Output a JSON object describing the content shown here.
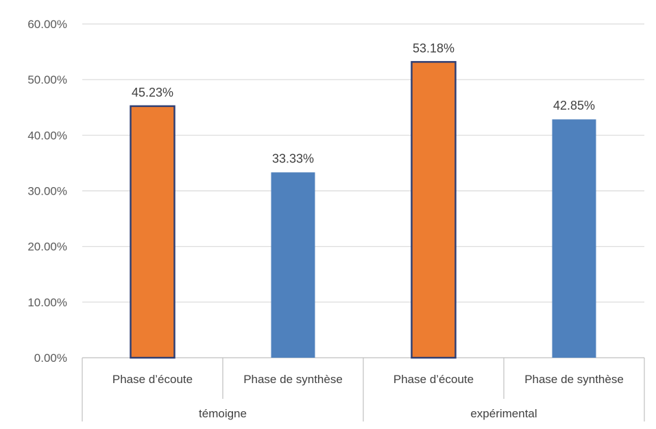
{
  "chart_data": {
    "type": "bar",
    "y_axis": {
      "min": 0,
      "max": 0.6,
      "step": 0.1,
      "tick_labels": [
        "0.00%",
        "10.00%",
        "20.00%",
        "30.00%",
        "40.00%",
        "50.00%",
        "60.00%"
      ]
    },
    "grid": true,
    "legend": "none",
    "groups": [
      {
        "label": "témoigne",
        "bars": [
          {
            "label": "Phase d’écoute",
            "value": 0.4523,
            "value_label": "45.23%",
            "color": "#ED7D31",
            "outlined": true
          },
          {
            "label": "Phase de synthèse",
            "value": 0.3333,
            "value_label": "33.33%",
            "color": "#4F81BD",
            "outlined": false
          }
        ]
      },
      {
        "label": "expérimental",
        "bars": [
          {
            "label": "Phase d’écoute",
            "value": 0.5318,
            "value_label": "53.18%",
            "color": "#ED7D31",
            "outlined": true
          },
          {
            "label": "Phase de synthèse",
            "value": 0.4285,
            "value_label": "42.85%",
            "color": "#4F81BD",
            "outlined": false
          }
        ]
      }
    ],
    "colors": {
      "outline": "#2F3F73",
      "grid": "#D9D9D9",
      "axis": "#BFBFBF"
    }
  }
}
